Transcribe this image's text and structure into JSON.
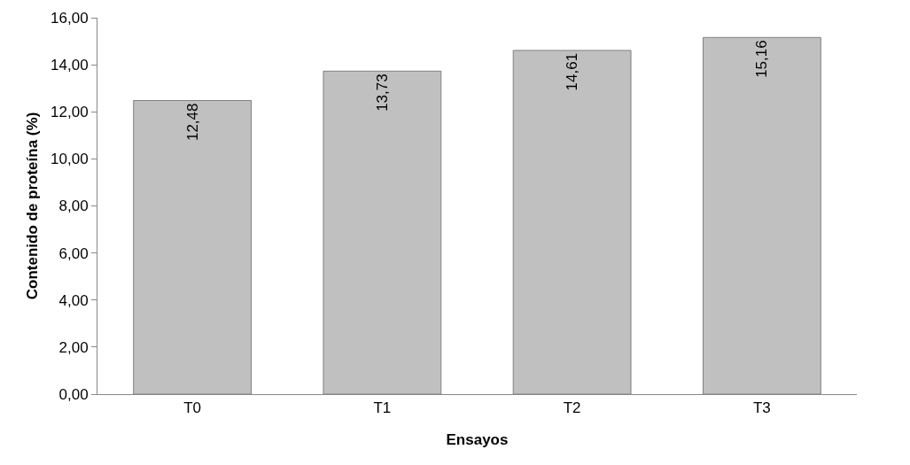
{
  "chart_data": {
    "type": "bar",
    "xlabel": "Ensayos",
    "ylabel": "Contenido de proteína (%)",
    "categories": [
      "T0",
      "T1",
      "T2",
      "T3"
    ],
    "values": [
      12.48,
      13.73,
      14.61,
      15.16
    ],
    "value_labels": [
      "12,48",
      "13,73",
      "14,61",
      "15,16"
    ],
    "color": "#c0c0c0",
    "ylim": [
      0,
      16
    ],
    "yticks": [
      {
        "value": 0,
        "label": "0,00"
      },
      {
        "value": 2,
        "label": "2,00"
      },
      {
        "value": 4,
        "label": "4,00"
      },
      {
        "value": 6,
        "label": "6,00"
      },
      {
        "value": 8,
        "label": "8,00"
      },
      {
        "value": 10,
        "label": "10,00"
      },
      {
        "value": 12,
        "label": "12,00"
      },
      {
        "value": 14,
        "label": "14,00"
      },
      {
        "value": 16,
        "label": "16,00"
      }
    ],
    "grid": false
  }
}
